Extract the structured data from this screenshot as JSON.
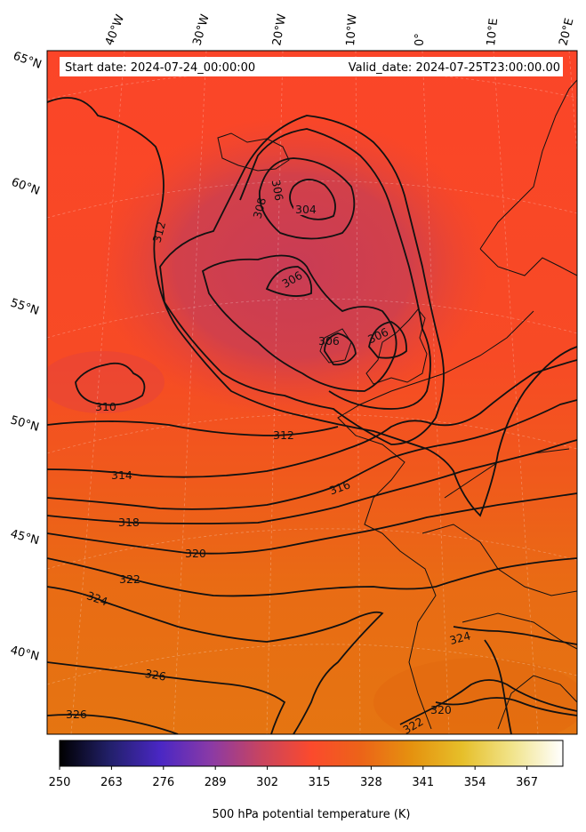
{
  "header": {
    "start_date": "Start date: 2024-07-24_00:00:00",
    "valid_date": "Valid_date: 2024-07-25T23:00:00.00"
  },
  "longitude_labels": [
    "40°W",
    "30°W",
    "20°W",
    "10°W",
    "0°",
    "10°E",
    "20°E"
  ],
  "latitude_labels": [
    "65°N",
    "60°N",
    "55°N",
    "50°N",
    "45°N",
    "40°N"
  ],
  "contour_labels": [
    "304",
    "306",
    "306",
    "306",
    "306",
    "308",
    "310",
    "312",
    "312",
    "314",
    "316",
    "318",
    "320",
    "320",
    "322",
    "322",
    "324",
    "324",
    "326",
    "326"
  ],
  "colorbar": {
    "label": "500 hPa potential temperature (K)",
    "ticks": [
      "250",
      "263",
      "276",
      "289",
      "302",
      "315",
      "328",
      "341",
      "354",
      "367"
    ],
    "range": [
      250,
      376
    ],
    "colors": [
      "#000000",
      "#22206a",
      "#4b2bc8",
      "#8a3aa6",
      "#c84460",
      "#fb4a2d",
      "#e86a1a",
      "#e59a12",
      "#e7c22e",
      "#f3e79a",
      "#ffffff"
    ]
  }
}
